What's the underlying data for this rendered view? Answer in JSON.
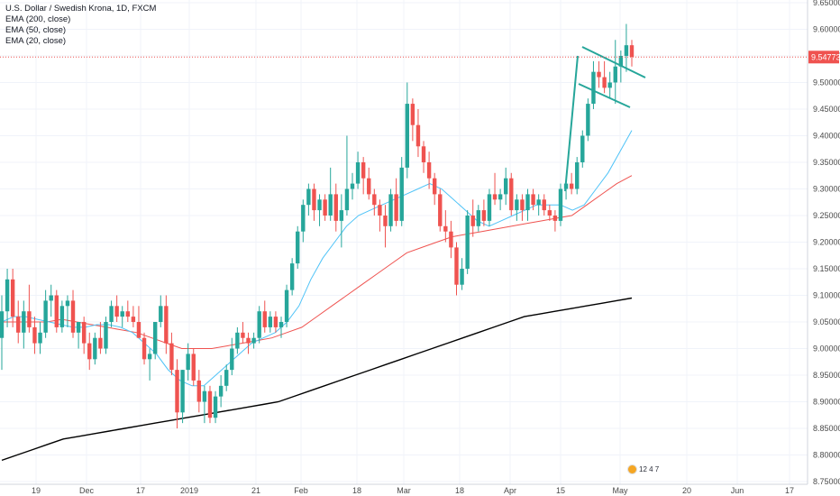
{
  "legend": {
    "title": "U.S. Dollar / Swedish Krona, 1D, FXCM",
    "ema200": "EMA (200, close)",
    "ema50": "EMA (50, close)",
    "ema20": "EMA (20, close)"
  },
  "logo_text": "12 4 7",
  "colors": {
    "up": "#26a69a",
    "down": "#ef5350",
    "ema200": "#000000",
    "ema50": "#ef5350",
    "ema20": "#4fc3f7",
    "drawing": "#26a69a",
    "price_tag": "#ef5350",
    "grid": "#f0f3fa"
  },
  "chart_data": {
    "type": "candlestick",
    "y_axis_ticks": [
      "9.65000",
      "9.60000",
      "9.55000",
      "9.50000",
      "9.45000",
      "9.40000",
      "9.35000",
      "9.30000",
      "9.25000",
      "9.20000",
      "9.15000",
      "9.10000",
      "9.05000",
      "9.00000",
      "8.95000",
      "8.90000",
      "8.85000",
      "8.80000",
      "8.75000"
    ],
    "ylim": [
      8.745,
      9.655
    ],
    "x_axis_ticks": [
      "19",
      "Dec",
      "17",
      "2019",
      "21",
      "Feb",
      "18",
      "Mar",
      "18",
      "Apr",
      "15",
      "May",
      "20",
      "Jun",
      "17"
    ],
    "current_price": "9.54773",
    "grid": true,
    "candles": [
      {
        "o": 9.02,
        "h": 9.1,
        "l": 8.96,
        "c": 9.07
      },
      {
        "o": 9.07,
        "h": 9.15,
        "l": 9.04,
        "c": 9.13
      },
      {
        "o": 9.13,
        "h": 9.15,
        "l": 9.04,
        "c": 9.06
      },
      {
        "o": 9.06,
        "h": 9.09,
        "l": 9.01,
        "c": 9.03
      },
      {
        "o": 9.03,
        "h": 9.09,
        "l": 9.0,
        "c": 9.07
      },
      {
        "o": 9.07,
        "h": 9.12,
        "l": 9.03,
        "c": 9.04
      },
      {
        "o": 9.04,
        "h": 9.06,
        "l": 8.99,
        "c": 9.01
      },
      {
        "o": 9.01,
        "h": 9.05,
        "l": 8.99,
        "c": 9.03
      },
      {
        "o": 9.03,
        "h": 9.11,
        "l": 9.02,
        "c": 9.09
      },
      {
        "o": 9.09,
        "h": 9.12,
        "l": 9.06,
        "c": 9.1
      },
      {
        "o": 9.1,
        "h": 9.11,
        "l": 9.03,
        "c": 9.04
      },
      {
        "o": 9.04,
        "h": 9.09,
        "l": 9.03,
        "c": 9.08
      },
      {
        "o": 9.08,
        "h": 9.1,
        "l": 9.04,
        "c": 9.09
      },
      {
        "o": 9.09,
        "h": 9.11,
        "l": 9.02,
        "c": 9.03
      },
      {
        "o": 9.03,
        "h": 9.05,
        "l": 9.0,
        "c": 9.05
      },
      {
        "o": 9.05,
        "h": 9.06,
        "l": 8.99,
        "c": 9.01
      },
      {
        "o": 9.01,
        "h": 9.03,
        "l": 8.96,
        "c": 8.98
      },
      {
        "o": 8.98,
        "h": 9.03,
        "l": 8.97,
        "c": 9.02
      },
      {
        "o": 9.02,
        "h": 9.05,
        "l": 8.99,
        "c": 9.0
      },
      {
        "o": 9.0,
        "h": 9.06,
        "l": 8.99,
        "c": 9.05
      },
      {
        "o": 9.05,
        "h": 9.09,
        "l": 9.04,
        "c": 9.08
      },
      {
        "o": 9.08,
        "h": 9.1,
        "l": 9.05,
        "c": 9.06
      },
      {
        "o": 9.06,
        "h": 9.08,
        "l": 9.04,
        "c": 9.07
      },
      {
        "o": 9.07,
        "h": 9.09,
        "l": 9.05,
        "c": 9.06
      },
      {
        "o": 9.06,
        "h": 9.08,
        "l": 9.04,
        "c": 9.05
      },
      {
        "o": 9.05,
        "h": 9.08,
        "l": 9.02,
        "c": 9.02
      },
      {
        "o": 9.02,
        "h": 9.03,
        "l": 8.97,
        "c": 8.98
      },
      {
        "o": 8.98,
        "h": 9.0,
        "l": 8.94,
        "c": 8.99
      },
      {
        "o": 8.99,
        "h": 9.05,
        "l": 8.98,
        "c": 9.05
      },
      {
        "o": 9.05,
        "h": 9.1,
        "l": 9.04,
        "c": 9.08
      },
      {
        "o": 9.08,
        "h": 9.1,
        "l": 8.99,
        "c": 9.01
      },
      {
        "o": 9.01,
        "h": 9.03,
        "l": 8.95,
        "c": 8.96
      },
      {
        "o": 8.96,
        "h": 8.98,
        "l": 8.85,
        "c": 8.88
      },
      {
        "o": 8.88,
        "h": 8.96,
        "l": 8.86,
        "c": 8.96
      },
      {
        "o": 8.96,
        "h": 9.01,
        "l": 8.94,
        "c": 8.99
      },
      {
        "o": 8.99,
        "h": 9.0,
        "l": 8.93,
        "c": 8.94
      },
      {
        "o": 8.94,
        "h": 8.96,
        "l": 8.88,
        "c": 8.9
      },
      {
        "o": 8.9,
        "h": 8.93,
        "l": 8.86,
        "c": 8.92
      },
      {
        "o": 8.92,
        "h": 8.93,
        "l": 8.86,
        "c": 8.87
      },
      {
        "o": 8.87,
        "h": 8.92,
        "l": 8.86,
        "c": 8.91
      },
      {
        "o": 8.91,
        "h": 8.95,
        "l": 8.89,
        "c": 8.93
      },
      {
        "o": 8.93,
        "h": 8.97,
        "l": 8.92,
        "c": 8.96
      },
      {
        "o": 8.96,
        "h": 9.02,
        "l": 8.95,
        "c": 9.0
      },
      {
        "o": 9.0,
        "h": 9.04,
        "l": 8.99,
        "c": 9.03
      },
      {
        "o": 9.03,
        "h": 9.05,
        "l": 9.01,
        "c": 9.02
      },
      {
        "o": 9.02,
        "h": 9.03,
        "l": 8.99,
        "c": 9.01
      },
      {
        "o": 9.01,
        "h": 9.03,
        "l": 9.0,
        "c": 9.02
      },
      {
        "o": 9.02,
        "h": 9.08,
        "l": 9.01,
        "c": 9.07
      },
      {
        "o": 9.07,
        "h": 9.09,
        "l": 9.03,
        "c": 9.04
      },
      {
        "o": 9.04,
        "h": 9.07,
        "l": 9.03,
        "c": 9.06
      },
      {
        "o": 9.06,
        "h": 9.07,
        "l": 9.03,
        "c": 9.04
      },
      {
        "o": 9.04,
        "h": 9.06,
        "l": 9.02,
        "c": 9.05
      },
      {
        "o": 9.05,
        "h": 9.12,
        "l": 9.04,
        "c": 9.11
      },
      {
        "o": 9.11,
        "h": 9.17,
        "l": 9.1,
        "c": 9.16
      },
      {
        "o": 9.16,
        "h": 9.23,
        "l": 9.15,
        "c": 9.22
      },
      {
        "o": 9.22,
        "h": 9.28,
        "l": 9.2,
        "c": 9.27
      },
      {
        "o": 9.27,
        "h": 9.31,
        "l": 9.25,
        "c": 9.3
      },
      {
        "o": 9.3,
        "h": 9.31,
        "l": 9.24,
        "c": 9.26
      },
      {
        "o": 9.26,
        "h": 9.29,
        "l": 9.23,
        "c": 9.28
      },
      {
        "o": 9.28,
        "h": 9.29,
        "l": 9.24,
        "c": 9.25
      },
      {
        "o": 9.25,
        "h": 9.34,
        "l": 9.24,
        "c": 9.29
      },
      {
        "o": 9.29,
        "h": 9.31,
        "l": 9.22,
        "c": 9.24
      },
      {
        "o": 9.24,
        "h": 9.29,
        "l": 9.19,
        "c": 9.26
      },
      {
        "o": 9.26,
        "h": 9.4,
        "l": 9.25,
        "c": 9.3
      },
      {
        "o": 9.3,
        "h": 9.33,
        "l": 9.28,
        "c": 9.31
      },
      {
        "o": 9.31,
        "h": 9.37,
        "l": 9.3,
        "c": 9.35
      },
      {
        "o": 9.35,
        "h": 9.36,
        "l": 9.29,
        "c": 9.32
      },
      {
        "o": 9.32,
        "h": 9.34,
        "l": 9.28,
        "c": 9.29
      },
      {
        "o": 9.29,
        "h": 9.3,
        "l": 9.25,
        "c": 9.27
      },
      {
        "o": 9.27,
        "h": 9.28,
        "l": 9.22,
        "c": 9.25
      },
      {
        "o": 9.25,
        "h": 9.27,
        "l": 9.19,
        "c": 9.23
      },
      {
        "o": 9.23,
        "h": 9.3,
        "l": 9.22,
        "c": 9.29
      },
      {
        "o": 9.29,
        "h": 9.32,
        "l": 9.23,
        "c": 9.24
      },
      {
        "o": 9.24,
        "h": 9.36,
        "l": 9.23,
        "c": 9.34
      },
      {
        "o": 9.34,
        "h": 9.5,
        "l": 9.32,
        "c": 9.46
      },
      {
        "o": 9.46,
        "h": 9.47,
        "l": 9.39,
        "c": 9.42
      },
      {
        "o": 9.42,
        "h": 9.45,
        "l": 9.36,
        "c": 9.38
      },
      {
        "o": 9.38,
        "h": 9.39,
        "l": 9.33,
        "c": 9.35
      },
      {
        "o": 9.35,
        "h": 9.37,
        "l": 9.3,
        "c": 9.32
      },
      {
        "o": 9.32,
        "h": 9.33,
        "l": 9.27,
        "c": 9.29
      },
      {
        "o": 9.29,
        "h": 9.3,
        "l": 9.22,
        "c": 9.23
      },
      {
        "o": 9.23,
        "h": 9.26,
        "l": 9.2,
        "c": 9.22
      },
      {
        "o": 9.22,
        "h": 9.24,
        "l": 9.17,
        "c": 9.19
      },
      {
        "o": 9.19,
        "h": 9.2,
        "l": 9.1,
        "c": 9.12
      },
      {
        "o": 9.12,
        "h": 9.17,
        "l": 9.11,
        "c": 9.15
      },
      {
        "o": 9.15,
        "h": 9.26,
        "l": 9.14,
        "c": 9.25
      },
      {
        "o": 9.25,
        "h": 9.28,
        "l": 9.21,
        "c": 9.23
      },
      {
        "o": 9.23,
        "h": 9.27,
        "l": 9.22,
        "c": 9.26
      },
      {
        "o": 9.26,
        "h": 9.28,
        "l": 9.23,
        "c": 9.24
      },
      {
        "o": 9.24,
        "h": 9.3,
        "l": 9.23,
        "c": 9.29
      },
      {
        "o": 9.29,
        "h": 9.33,
        "l": 9.27,
        "c": 9.28
      },
      {
        "o": 9.28,
        "h": 9.3,
        "l": 9.26,
        "c": 9.29
      },
      {
        "o": 9.29,
        "h": 9.34,
        "l": 9.27,
        "c": 9.32
      },
      {
        "o": 9.32,
        "h": 9.33,
        "l": 9.25,
        "c": 9.26
      },
      {
        "o": 9.26,
        "h": 9.29,
        "l": 9.24,
        "c": 9.28
      },
      {
        "o": 9.28,
        "h": 9.29,
        "l": 9.24,
        "c": 9.26
      },
      {
        "o": 9.26,
        "h": 9.3,
        "l": 9.24,
        "c": 9.29
      },
      {
        "o": 9.29,
        "h": 9.3,
        "l": 9.26,
        "c": 9.27
      },
      {
        "o": 9.27,
        "h": 9.29,
        "l": 9.25,
        "c": 9.28
      },
      {
        "o": 9.28,
        "h": 9.29,
        "l": 9.25,
        "c": 9.26
      },
      {
        "o": 9.26,
        "h": 9.27,
        "l": 9.24,
        "c": 9.25
      },
      {
        "o": 9.25,
        "h": 9.26,
        "l": 9.22,
        "c": 9.24
      },
      {
        "o": 9.24,
        "h": 9.31,
        "l": 9.23,
        "c": 9.3
      },
      {
        "o": 9.3,
        "h": 9.32,
        "l": 9.28,
        "c": 9.31
      },
      {
        "o": 9.31,
        "h": 9.33,
        "l": 9.29,
        "c": 9.3
      },
      {
        "o": 9.3,
        "h": 9.36,
        "l": 9.29,
        "c": 9.35
      },
      {
        "o": 9.35,
        "h": 9.41,
        "l": 9.34,
        "c": 9.4
      },
      {
        "o": 9.4,
        "h": 9.47,
        "l": 9.39,
        "c": 9.46
      },
      {
        "o": 9.46,
        "h": 9.54,
        "l": 9.45,
        "c": 9.52
      },
      {
        "o": 9.52,
        "h": 9.54,
        "l": 9.49,
        "c": 9.51
      },
      {
        "o": 9.51,
        "h": 9.54,
        "l": 9.48,
        "c": 9.49
      },
      {
        "o": 9.49,
        "h": 9.52,
        "l": 9.47,
        "c": 9.5
      },
      {
        "o": 9.5,
        "h": 9.58,
        "l": 9.46,
        "c": 9.53
      },
      {
        "o": 9.53,
        "h": 9.56,
        "l": 9.5,
        "c": 9.55
      },
      {
        "o": 9.55,
        "h": 9.61,
        "l": 9.52,
        "c": 9.57
      },
      {
        "o": 9.57,
        "h": 9.58,
        "l": 9.53,
        "c": 9.548
      }
    ],
    "ema200": [
      8.79,
      8.8,
      8.81,
      8.82,
      8.83,
      8.835,
      8.84,
      8.845,
      8.85,
      8.855,
      8.86,
      8.865,
      8.87,
      8.875,
      8.88,
      8.885,
      8.89,
      8.895,
      8.9,
      8.91,
      8.92,
      8.93,
      8.94,
      8.95,
      8.96,
      8.97,
      8.98,
      8.99,
      9.0,
      9.01,
      9.02,
      9.03,
      9.04,
      9.05,
      9.06,
      9.065,
      9.07,
      9.075,
      9.08,
      9.085,
      9.09,
      9.095
    ],
    "ema50": [
      9.05,
      9.05,
      9.05,
      9.05,
      9.055,
      9.05,
      9.045,
      9.04,
      9.035,
      9.03,
      9.02,
      9.01,
      9.0,
      9.0,
      9.0,
      9.005,
      9.01,
      9.015,
      9.02,
      9.03,
      9.04,
      9.06,
      9.08,
      9.1,
      9.12,
      9.14,
      9.16,
      9.18,
      9.19,
      9.2,
      9.21,
      9.215,
      9.22,
      9.225,
      9.23,
      9.235,
      9.24,
      9.245,
      9.25,
      9.27,
      9.29,
      9.31,
      9.325
    ],
    "ema20": [
      9.05,
      9.06,
      9.06,
      9.055,
      9.05,
      9.045,
      9.04,
      9.04,
      9.045,
      9.045,
      9.04,
      9.03,
      9.01,
      8.99,
      8.96,
      8.94,
      8.93,
      8.93,
      8.95,
      8.97,
      8.99,
      9.01,
      9.02,
      9.03,
      9.05,
      9.08,
      9.13,
      9.17,
      9.2,
      9.23,
      9.25,
      9.26,
      9.27,
      9.28,
      9.29,
      9.3,
      9.31,
      9.3,
      9.28,
      9.26,
      9.24,
      9.23,
      9.24,
      9.25,
      9.26,
      9.27,
      9.27,
      9.27,
      9.26,
      9.27,
      9.3,
      9.33,
      9.37,
      9.41
    ]
  }
}
